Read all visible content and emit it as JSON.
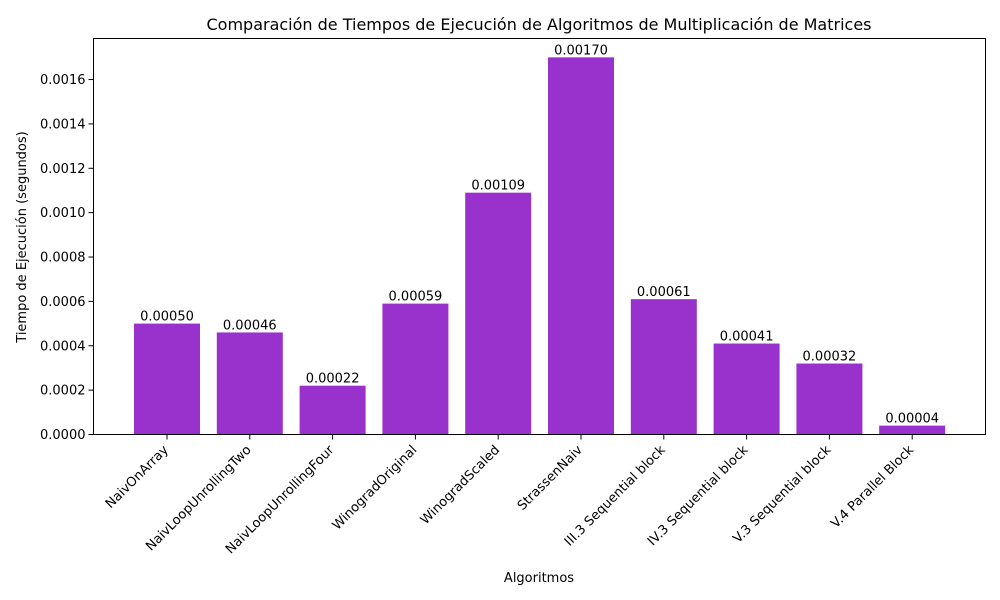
{
  "chart_data": {
    "type": "bar",
    "title": "Comparación de Tiempos de Ejecución de Algoritmos de Multiplicación de Matrices",
    "xlabel": "Algoritmos",
    "ylabel": "Tiempo de Ejecución (segundos)",
    "categories": [
      "NaivOnArray",
      "NaivLoopUnrollingTwo",
      "NaivLoopUnrollingFour",
      "WinogradOriginal",
      "WinogradScaled",
      "StrassenNaiv",
      "III.3 Sequential block",
      "IV.3 Sequential block",
      "V.3 Sequential block",
      "V.4 Parallel Block"
    ],
    "values": [
      0.0005,
      0.00046,
      0.00022,
      0.00059,
      0.00109,
      0.0017,
      0.00061,
      0.00041,
      0.00032,
      4e-05
    ],
    "data_labels": [
      "0.00050",
      "0.00046",
      "0.00022",
      "0.00059",
      "0.00109",
      "0.00170",
      "0.00061",
      "0.00041",
      "0.00032",
      "0.00004"
    ],
    "yticks": [
      0,
      0.0002,
      0.0004,
      0.0006,
      0.0008,
      0.001,
      0.0012,
      0.0014,
      0.0016
    ],
    "ytick_labels": [
      "0.0000",
      "0.0002",
      "0.0004",
      "0.0006",
      "0.0008",
      "0.0010",
      "0.0012",
      "0.0014",
      "0.0016"
    ],
    "ylim": [
      0,
      0.001785
    ],
    "bar_color": "#9932CC",
    "grid": false,
    "legend": "none"
  }
}
